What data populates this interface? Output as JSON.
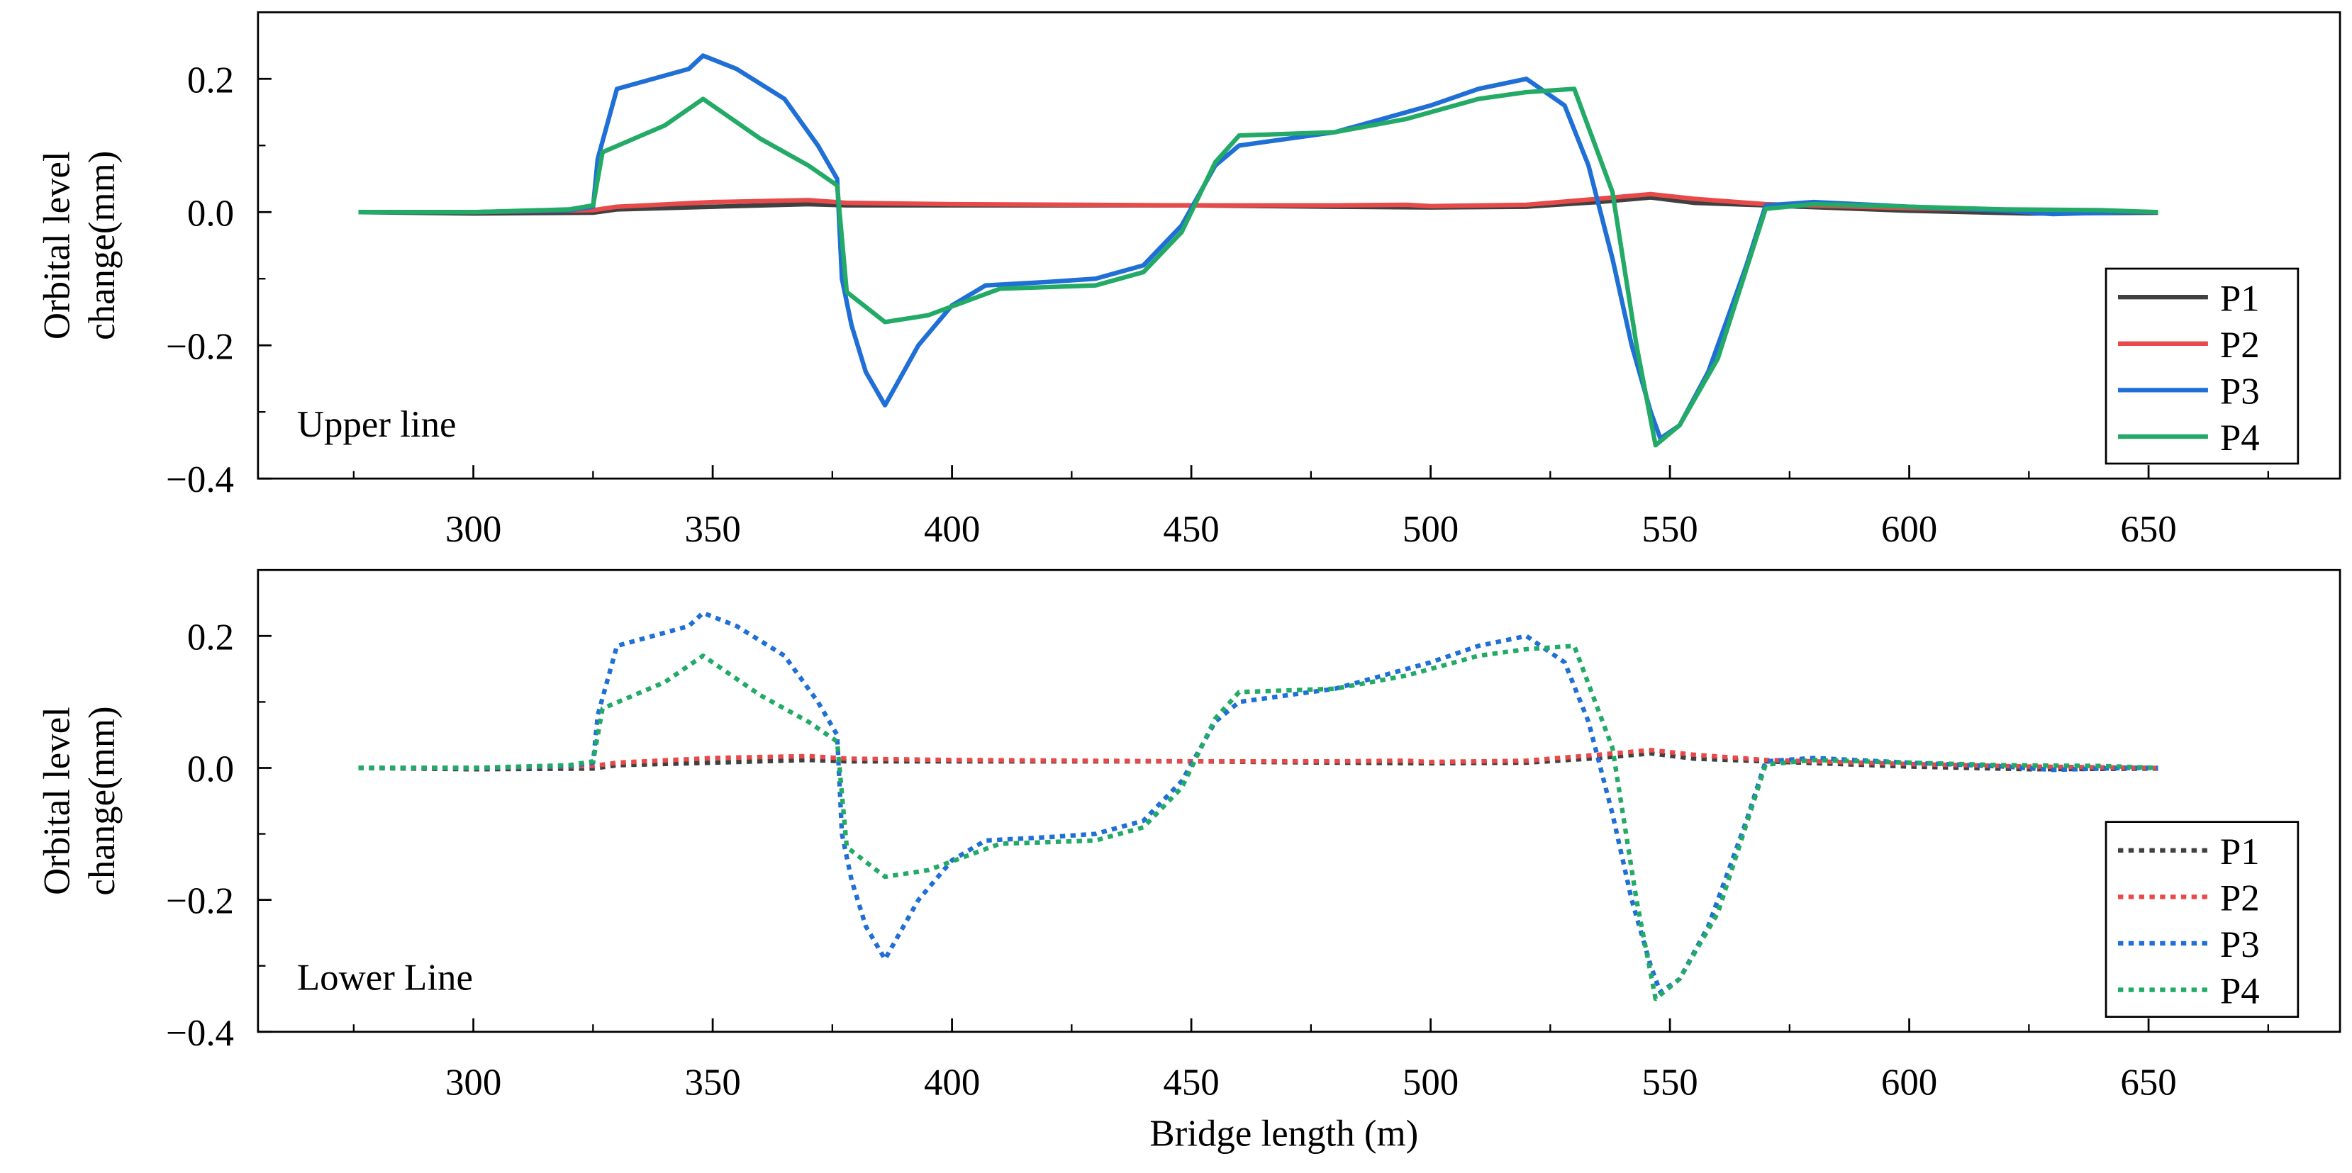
{
  "chart_data": [
    {
      "type": "line",
      "panel_label": "Upper line",
      "ylabel_lines": [
        "Orbital level",
        "change(mm)"
      ],
      "xlabel": "",
      "xlim": [
        255,
        690
      ],
      "ylim": [
        -0.4,
        0.3
      ],
      "x_ticks": [
        "300",
        "350",
        "400",
        "450",
        "500",
        "550",
        "600",
        "650"
      ],
      "y_ticks": [
        "0.2",
        "0.0",
        "−0.2",
        "−0.4"
      ],
      "line_style": "solid",
      "legend_position": "bottom-right",
      "series": [
        {
          "name": "P1",
          "color": "#404040",
          "points": [
            [
              276,
              0
            ],
            [
              300,
              -0.002
            ],
            [
              325,
              -0.001
            ],
            [
              330,
              0.004
            ],
            [
              350,
              0.008
            ],
            [
              370,
              0.012
            ],
            [
              378,
              0.01
            ],
            [
              400,
              0.01
            ],
            [
              450,
              0.01
            ],
            [
              480,
              0.008
            ],
            [
              500,
              0.007
            ],
            [
              520,
              0.008
            ],
            [
              535,
              0.015
            ],
            [
              546,
              0.022
            ],
            [
              555,
              0.014
            ],
            [
              570,
              0.01
            ],
            [
              600,
              0.002
            ],
            [
              625,
              -0.002
            ],
            [
              652,
              -0.001
            ]
          ]
        },
        {
          "name": "P2",
          "color": "#e84a4a",
          "points": [
            [
              276,
              0
            ],
            [
              300,
              0
            ],
            [
              325,
              0.003
            ],
            [
              330,
              0.008
            ],
            [
              350,
              0.015
            ],
            [
              370,
              0.018
            ],
            [
              378,
              0.014
            ],
            [
              400,
              0.012
            ],
            [
              450,
              0.01
            ],
            [
              480,
              0.01
            ],
            [
              495,
              0.011
            ],
            [
              500,
              0.009
            ],
            [
              520,
              0.011
            ],
            [
              535,
              0.02
            ],
            [
              546,
              0.027
            ],
            [
              555,
              0.02
            ],
            [
              570,
              0.012
            ],
            [
              600,
              0.006
            ],
            [
              625,
              0.002
            ],
            [
              652,
              0
            ]
          ]
        },
        {
          "name": "P3",
          "color": "#1f6fd6",
          "points": [
            [
              276,
              0
            ],
            [
              300,
              0
            ],
            [
              320,
              0.003
            ],
            [
              325,
              0.008
            ],
            [
              326,
              0.08
            ],
            [
              330,
              0.185
            ],
            [
              345,
              0.215
            ],
            [
              348,
              0.235
            ],
            [
              355,
              0.215
            ],
            [
              365,
              0.17
            ],
            [
              372,
              0.1
            ],
            [
              376,
              0.05
            ],
            [
              377,
              -0.1
            ],
            [
              379,
              -0.17
            ],
            [
              382,
              -0.24
            ],
            [
              386,
              -0.29
            ],
            [
              393,
              -0.2
            ],
            [
              400,
              -0.14
            ],
            [
              407,
              -0.11
            ],
            [
              420,
              -0.105
            ],
            [
              430,
              -0.1
            ],
            [
              440,
              -0.08
            ],
            [
              448,
              -0.02
            ],
            [
              455,
              0.07
            ],
            [
              460,
              0.1
            ],
            [
              480,
              0.12
            ],
            [
              500,
              0.16
            ],
            [
              510,
              0.185
            ],
            [
              520,
              0.2
            ],
            [
              528,
              0.16
            ],
            [
              533,
              0.07
            ],
            [
              538,
              -0.07
            ],
            [
              542,
              -0.2
            ],
            [
              546,
              -0.3
            ],
            [
              548,
              -0.34
            ],
            [
              552,
              -0.32
            ],
            [
              558,
              -0.24
            ],
            [
              562,
              -0.16
            ],
            [
              566,
              -0.08
            ],
            [
              570,
              0.01
            ],
            [
              580,
              0.015
            ],
            [
              600,
              0.008
            ],
            [
              620,
              0.002
            ],
            [
              630,
              -0.003
            ],
            [
              645,
              0
            ],
            [
              652,
              0
            ]
          ]
        },
        {
          "name": "P4",
          "color": "#22aa66",
          "points": [
            [
              276,
              0
            ],
            [
              300,
              0
            ],
            [
              320,
              0.004
            ],
            [
              325,
              0.01
            ],
            [
              327,
              0.09
            ],
            [
              340,
              0.13
            ],
            [
              348,
              0.17
            ],
            [
              360,
              0.11
            ],
            [
              370,
              0.07
            ],
            [
              376,
              0.04
            ],
            [
              378,
              -0.12
            ],
            [
              386,
              -0.165
            ],
            [
              395,
              -0.155
            ],
            [
              410,
              -0.115
            ],
            [
              430,
              -0.11
            ],
            [
              440,
              -0.09
            ],
            [
              448,
              -0.03
            ],
            [
              455,
              0.075
            ],
            [
              460,
              0.115
            ],
            [
              480,
              0.12
            ],
            [
              495,
              0.14
            ],
            [
              510,
              0.17
            ],
            [
              520,
              0.18
            ],
            [
              530,
              0.185
            ],
            [
              538,
              0.03
            ],
            [
              543,
              -0.2
            ],
            [
              547,
              -0.35
            ],
            [
              552,
              -0.32
            ],
            [
              560,
              -0.22
            ],
            [
              570,
              0.005
            ],
            [
              580,
              0.012
            ],
            [
              600,
              0.008
            ],
            [
              620,
              0.004
            ],
            [
              640,
              0.003
            ],
            [
              652,
              0
            ]
          ]
        }
      ]
    },
    {
      "type": "line",
      "panel_label": "Lower Line",
      "ylabel_lines": [
        "Orbital level",
        "change(mm)"
      ],
      "xlabel": "Bridge length (m)",
      "xlim": [
        255,
        690
      ],
      "ylim": [
        -0.4,
        0.3
      ],
      "x_ticks": [
        "300",
        "350",
        "400",
        "450",
        "500",
        "550",
        "600",
        "650"
      ],
      "y_ticks": [
        "0.2",
        "0.0",
        "−0.2",
        "−0.4"
      ],
      "line_style": "dotted",
      "legend_position": "bottom-right",
      "series": [
        {
          "name": "P1",
          "color": "#404040",
          "points": [
            [
              276,
              0
            ],
            [
              300,
              -0.002
            ],
            [
              325,
              -0.001
            ],
            [
              330,
              0.004
            ],
            [
              350,
              0.008
            ],
            [
              370,
              0.012
            ],
            [
              378,
              0.01
            ],
            [
              400,
              0.01
            ],
            [
              450,
              0.01
            ],
            [
              480,
              0.008
            ],
            [
              500,
              0.007
            ],
            [
              520,
              0.008
            ],
            [
              535,
              0.015
            ],
            [
              546,
              0.022
            ],
            [
              555,
              0.014
            ],
            [
              570,
              0.01
            ],
            [
              600,
              0.002
            ],
            [
              625,
              -0.002
            ],
            [
              652,
              -0.001
            ]
          ]
        },
        {
          "name": "P2",
          "color": "#e84a4a",
          "points": [
            [
              276,
              0
            ],
            [
              300,
              0
            ],
            [
              325,
              0.003
            ],
            [
              330,
              0.008
            ],
            [
              350,
              0.015
            ],
            [
              370,
              0.018
            ],
            [
              378,
              0.014
            ],
            [
              400,
              0.012
            ],
            [
              450,
              0.01
            ],
            [
              480,
              0.01
            ],
            [
              495,
              0.011
            ],
            [
              500,
              0.009
            ],
            [
              520,
              0.011
            ],
            [
              535,
              0.02
            ],
            [
              546,
              0.027
            ],
            [
              555,
              0.02
            ],
            [
              570,
              0.012
            ],
            [
              600,
              0.006
            ],
            [
              625,
              0.002
            ],
            [
              652,
              0
            ]
          ]
        },
        {
          "name": "P3",
          "color": "#1f6fd6",
          "points": [
            [
              276,
              0
            ],
            [
              300,
              0
            ],
            [
              320,
              0.003
            ],
            [
              325,
              0.008
            ],
            [
              326,
              0.08
            ],
            [
              330,
              0.185
            ],
            [
              345,
              0.215
            ],
            [
              348,
              0.235
            ],
            [
              355,
              0.215
            ],
            [
              365,
              0.17
            ],
            [
              372,
              0.1
            ],
            [
              376,
              0.05
            ],
            [
              377,
              -0.1
            ],
            [
              379,
              -0.17
            ],
            [
              382,
              -0.24
            ],
            [
              386,
              -0.29
            ],
            [
              393,
              -0.2
            ],
            [
              400,
              -0.14
            ],
            [
              407,
              -0.11
            ],
            [
              420,
              -0.105
            ],
            [
              430,
              -0.1
            ],
            [
              440,
              -0.08
            ],
            [
              448,
              -0.02
            ],
            [
              455,
              0.07
            ],
            [
              460,
              0.1
            ],
            [
              480,
              0.12
            ],
            [
              500,
              0.16
            ],
            [
              510,
              0.185
            ],
            [
              520,
              0.2
            ],
            [
              528,
              0.16
            ],
            [
              533,
              0.07
            ],
            [
              538,
              -0.07
            ],
            [
              542,
              -0.2
            ],
            [
              546,
              -0.3
            ],
            [
              548,
              -0.34
            ],
            [
              552,
              -0.32
            ],
            [
              558,
              -0.24
            ],
            [
              562,
              -0.16
            ],
            [
              566,
              -0.08
            ],
            [
              570,
              0.01
            ],
            [
              580,
              0.015
            ],
            [
              600,
              0.008
            ],
            [
              620,
              0.002
            ],
            [
              630,
              -0.003
            ],
            [
              645,
              0
            ],
            [
              652,
              0
            ]
          ]
        },
        {
          "name": "P4",
          "color": "#22aa66",
          "points": [
            [
              276,
              0
            ],
            [
              300,
              0
            ],
            [
              320,
              0.004
            ],
            [
              325,
              0.01
            ],
            [
              327,
              0.09
            ],
            [
              340,
              0.13
            ],
            [
              348,
              0.17
            ],
            [
              360,
              0.11
            ],
            [
              370,
              0.07
            ],
            [
              376,
              0.04
            ],
            [
              378,
              -0.12
            ],
            [
              386,
              -0.165
            ],
            [
              395,
              -0.155
            ],
            [
              410,
              -0.115
            ],
            [
              430,
              -0.11
            ],
            [
              440,
              -0.09
            ],
            [
              448,
              -0.03
            ],
            [
              455,
              0.075
            ],
            [
              460,
              0.115
            ],
            [
              480,
              0.12
            ],
            [
              495,
              0.14
            ],
            [
              510,
              0.17
            ],
            [
              520,
              0.18
            ],
            [
              530,
              0.185
            ],
            [
              538,
              0.03
            ],
            [
              543,
              -0.2
            ],
            [
              547,
              -0.35
            ],
            [
              552,
              -0.32
            ],
            [
              560,
              -0.22
            ],
            [
              570,
              0.005
            ],
            [
              580,
              0.012
            ],
            [
              600,
              0.008
            ],
            [
              620,
              0.004
            ],
            [
              640,
              0.003
            ],
            [
              652,
              0
            ]
          ]
        }
      ]
    }
  ]
}
